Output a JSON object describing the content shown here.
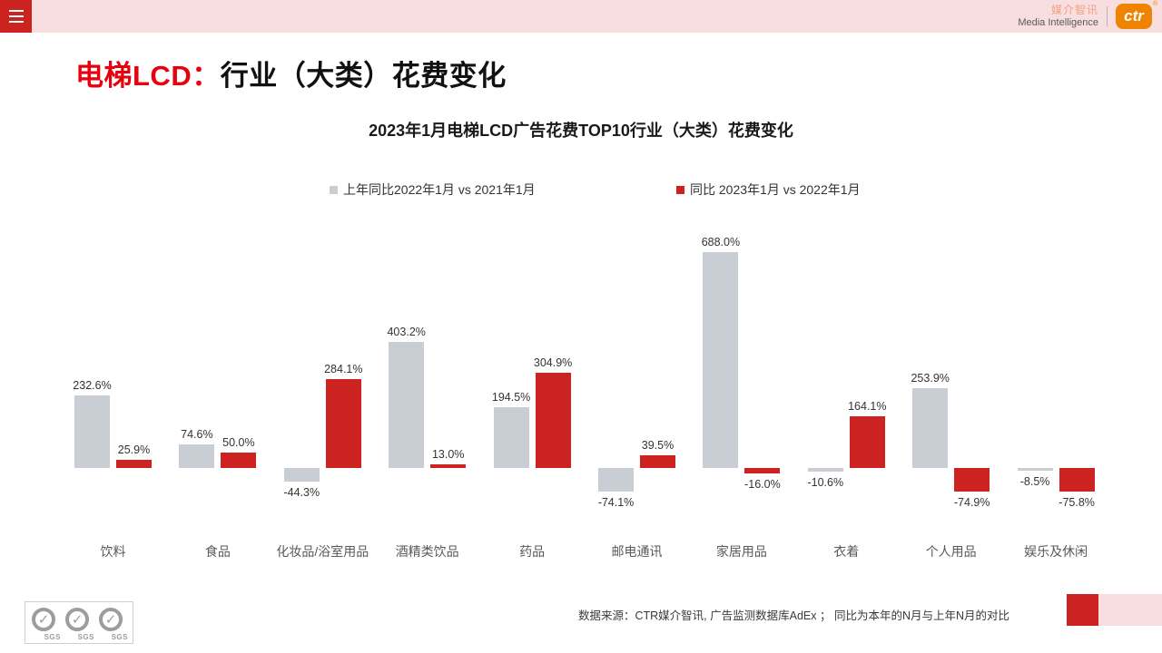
{
  "topbar": {
    "brand_cn": "媒介智讯",
    "brand_en": "Media Intelligence",
    "logo_text": "ctr",
    "registered_mark": "®"
  },
  "page_title": {
    "highlight": "电梯LCD：",
    "rest": "行业（大类）花费变化"
  },
  "chart_data": {
    "type": "bar",
    "title": "2023年1月电梯LCD广告花费TOP10行业（大类）花费变化",
    "categories": [
      "饮料",
      "食品",
      "化妆品/浴室用品",
      "酒精类饮品",
      "药品",
      "邮电通讯",
      "家居用品",
      "衣着",
      "个人用品",
      "娱乐及休闲"
    ],
    "series": [
      {
        "name": "上年同比2022年1月 vs 2021年1月",
        "color": "#c9ced4",
        "values": [
          232.6,
          74.6,
          -44.3,
          403.2,
          194.5,
          -74.1,
          688.0,
          -10.6,
          253.9,
          -8.5
        ]
      },
      {
        "name": "同比 2023年1月  vs 2022年1月",
        "color": "#cc2320",
        "values": [
          25.9,
          50.0,
          284.1,
          13.0,
          304.9,
          39.5,
          -16.0,
          164.1,
          -74.9,
          -75.8
        ]
      }
    ],
    "value_suffix": "%",
    "value_decimals": 1,
    "ylim": [
      -100,
      720
    ],
    "grid": false,
    "axes_hidden": true,
    "legend_position": "top-center",
    "data_labels": "all bars, one decimal, percent"
  },
  "footer": {
    "source_text": "数据来源：CTR媒介智讯, 广告监测数据库AdEx ；  同比为本年的N月与上年N月的对比",
    "sgs_labels": [
      "SGS",
      "SGS",
      "SGS"
    ]
  },
  "colors": {
    "accent_red": "#cc2320",
    "bar_gray": "#c9ced4",
    "topbar_pink": "#f8dede",
    "title_red": "#e8000d",
    "logo_orange": "#f08300"
  }
}
